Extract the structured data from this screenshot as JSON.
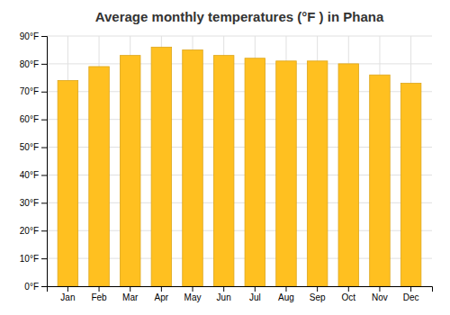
{
  "chart_data": {
    "type": "bar",
    "title": "Average monthly temperatures (°F ) in Phana",
    "categories": [
      "Jan",
      "Feb",
      "Mar",
      "Apr",
      "May",
      "Jun",
      "Jul",
      "Aug",
      "Sep",
      "Oct",
      "Nov",
      "Dec"
    ],
    "values": [
      74,
      79,
      83,
      86,
      85,
      83,
      82,
      81,
      81,
      80,
      76,
      73
    ],
    "color": "#FFC020",
    "ylim": [
      0,
      90
    ],
    "yticks": [
      {
        "value": 0,
        "label": "0°F"
      },
      {
        "value": 10,
        "label": "10°F"
      },
      {
        "value": 20,
        "label": "20°F"
      },
      {
        "value": 30,
        "label": "30°F"
      },
      {
        "value": 40,
        "label": "40°F"
      },
      {
        "value": 50,
        "label": "50°F"
      },
      {
        "value": 60,
        "label": "60°F"
      },
      {
        "value": 70,
        "label": "70°F"
      },
      {
        "value": 80,
        "label": "80°F"
      },
      {
        "value": 90,
        "label": "90°F"
      }
    ],
    "grid": true
  }
}
